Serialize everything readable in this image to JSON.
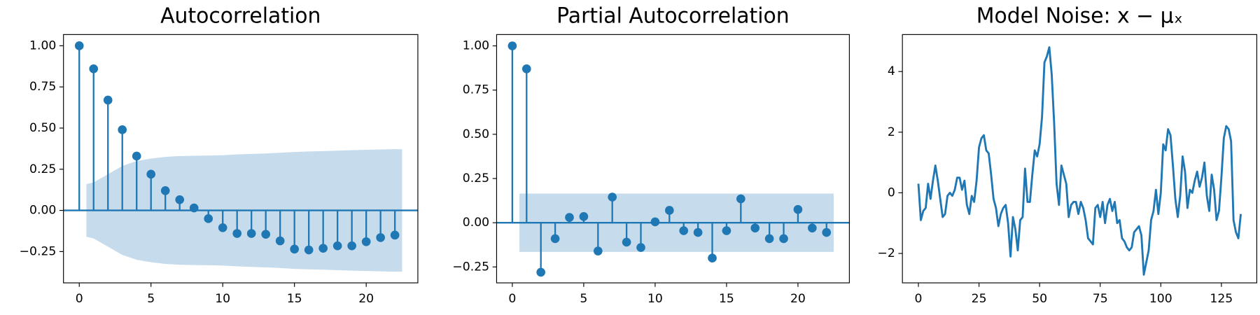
{
  "chart_data": [
    {
      "type": "stem",
      "title": "Autocorrelation",
      "color": "#1f77b4",
      "x": [
        0,
        1,
        2,
        3,
        4,
        5,
        6,
        7,
        8,
        9,
        10,
        11,
        12,
        13,
        14,
        15,
        16,
        17,
        18,
        19,
        20,
        21,
        22
      ],
      "values": [
        1.0,
        0.86,
        0.67,
        0.49,
        0.33,
        0.22,
        0.12,
        0.065,
        0.015,
        -0.05,
        -0.105,
        -0.14,
        -0.14,
        -0.145,
        -0.185,
        -0.235,
        -0.24,
        -0.23,
        -0.215,
        -0.215,
        -0.19,
        -0.165,
        -0.15
      ],
      "band": {
        "color": "#c6dbec",
        "x": [
          0.5,
          1,
          2,
          3,
          4,
          5,
          6,
          7,
          8,
          9,
          10,
          11,
          12,
          13,
          14,
          15,
          16,
          17,
          18,
          19,
          20,
          21,
          22,
          22.5
        ],
        "upper": [
          0.16,
          0.17,
          0.22,
          0.27,
          0.3,
          0.315,
          0.325,
          0.33,
          0.332,
          0.333,
          0.335,
          0.34,
          0.343,
          0.346,
          0.35,
          0.355,
          0.358,
          0.36,
          0.363,
          0.366,
          0.368,
          0.37,
          0.372,
          0.372
        ],
        "lower": [
          -0.16,
          -0.17,
          -0.22,
          -0.27,
          -0.3,
          -0.315,
          -0.325,
          -0.33,
          -0.332,
          -0.333,
          -0.335,
          -0.34,
          -0.343,
          -0.346,
          -0.35,
          -0.355,
          -0.358,
          -0.36,
          -0.363,
          -0.366,
          -0.368,
          -0.37,
          -0.372,
          -0.372
        ]
      },
      "xlim": [
        -1.1,
        23.6
      ],
      "ylim": [
        -0.44,
        1.068
      ],
      "xticks": [
        0,
        5,
        10,
        15,
        20
      ],
      "yticks": [
        {
          "value": -0.25,
          "label": "−0.25"
        },
        {
          "value": 0,
          "label": "0.00"
        },
        {
          "value": 0.25,
          "label": "0.25"
        },
        {
          "value": 0.5,
          "label": "0.50"
        },
        {
          "value": 0.75,
          "label": "0.75"
        },
        {
          "value": 1,
          "label": "1.00"
        }
      ]
    },
    {
      "type": "stem",
      "title": "Partial Autocorrelation",
      "color": "#1f77b4",
      "x": [
        0,
        1,
        2,
        3,
        4,
        5,
        6,
        7,
        8,
        9,
        10,
        11,
        12,
        13,
        14,
        15,
        16,
        17,
        18,
        19,
        20,
        21,
        22
      ],
      "values": [
        1.0,
        0.87,
        -0.28,
        -0.09,
        0.03,
        0.035,
        -0.16,
        0.145,
        -0.11,
        -0.14,
        0.005,
        0.07,
        -0.045,
        -0.055,
        -0.2,
        -0.045,
        0.135,
        -0.03,
        -0.09,
        -0.09,
        0.075,
        -0.03,
        -0.055
      ],
      "band": {
        "color": "#c6dbec",
        "x": [
          0.5,
          22.5
        ],
        "upper": [
          0.165,
          0.165
        ],
        "lower": [
          -0.165,
          -0.165
        ]
      },
      "xlim": [
        -1.1,
        23.6
      ],
      "ylim": [
        -0.34,
        1.064
      ],
      "xticks": [
        0,
        5,
        10,
        15,
        20
      ],
      "yticks": [
        {
          "value": -0.25,
          "label": "−0.25"
        },
        {
          "value": 0,
          "label": "0.00"
        },
        {
          "value": 0.25,
          "label": "0.25"
        },
        {
          "value": 0.5,
          "label": "0.50"
        },
        {
          "value": 0.75,
          "label": "0.75"
        },
        {
          "value": 1,
          "label": "1.00"
        }
      ]
    },
    {
      "type": "line",
      "title": "Model Noise: x − μₓ",
      "color": "#1f77b4",
      "x": [
        0,
        1,
        2,
        3,
        4,
        5,
        6,
        7,
        8,
        9,
        10,
        11,
        12,
        13,
        14,
        15,
        16,
        17,
        18,
        19,
        20,
        21,
        22,
        23,
        24,
        25,
        26,
        27,
        28,
        29,
        30,
        31,
        32,
        33,
        34,
        35,
        36,
        37,
        38,
        39,
        40,
        41,
        42,
        43,
        44,
        45,
        46,
        47,
        48,
        49,
        50,
        51,
        52,
        53,
        54,
        55,
        56,
        57,
        58,
        59,
        60,
        61,
        62,
        63,
        64,
        65,
        66,
        67,
        68,
        69,
        70,
        71,
        72,
        73,
        74,
        75,
        76,
        77,
        78,
        79,
        80,
        81,
        82,
        83,
        84,
        85,
        86,
        87,
        88,
        89,
        90,
        91,
        92,
        93,
        94,
        95,
        96,
        97,
        98,
        99,
        100,
        101,
        102,
        103,
        104,
        105,
        106,
        107,
        108,
        109,
        110,
        111,
        112,
        113,
        114,
        115,
        116,
        117,
        118,
        119,
        120,
        121,
        122,
        123,
        124,
        125,
        126,
        127,
        128,
        129,
        130,
        131,
        132,
        133
      ],
      "values": [
        0.3,
        -0.9,
        -0.6,
        -0.5,
        0.3,
        -0.2,
        0.4,
        0.9,
        0.4,
        -0.2,
        -0.8,
        -0.7,
        -0.1,
        0.0,
        -0.1,
        0.1,
        0.5,
        0.5,
        0.1,
        0.4,
        -0.4,
        -0.7,
        -0.1,
        -0.3,
        0.4,
        1.5,
        1.8,
        1.9,
        1.4,
        1.3,
        0.6,
        -0.2,
        -0.5,
        -1.1,
        -0.7,
        -0.5,
        -0.4,
        -1.0,
        -2.1,
        -0.8,
        -1.2,
        -1.9,
        -0.9,
        -0.8,
        0.8,
        -0.3,
        -0.3,
        0.6,
        1.4,
        1.2,
        1.6,
        2.5,
        4.3,
        4.5,
        4.8,
        3.9,
        2.3,
        0.3,
        -0.4,
        0.9,
        0.6,
        0.3,
        -0.8,
        -0.4,
        -0.3,
        -0.3,
        -0.7,
        -0.3,
        -0.5,
        -0.9,
        -1.5,
        -1.6,
        -1.7,
        -0.5,
        -0.4,
        -0.8,
        -0.3,
        -1.0,
        -0.4,
        -0.2,
        -0.6,
        -0.3,
        -1.0,
        -0.9,
        -1.5,
        -1.6,
        -1.8,
        -1.9,
        -1.8,
        -1.3,
        -1.2,
        -1.1,
        -1.4,
        -2.7,
        -2.3,
        -1.9,
        -0.9,
        -0.6,
        0.1,
        -0.7,
        0.0,
        1.6,
        1.4,
        2.1,
        1.9,
        0.9,
        -0.2,
        -0.8,
        -0.1,
        1.2,
        0.7,
        -0.5,
        0.1,
        0.0,
        0.4,
        0.7,
        0.2,
        0.5,
        1.0,
        -0.1,
        -0.6,
        0.6,
        0.1,
        -0.9,
        -0.6,
        0.5,
        1.8,
        2.2,
        2.1,
        1.7,
        -0.9,
        -1.3,
        -1.5,
        -0.7
      ],
      "xlim": [
        -6.6,
        139.6
      ],
      "ylim": [
        -2.97,
        5.22
      ],
      "xticks": [
        0,
        25,
        50,
        75,
        100,
        125
      ],
      "yticks": [
        {
          "value": -2,
          "label": "−2"
        },
        0,
        2,
        4
      ]
    }
  ]
}
